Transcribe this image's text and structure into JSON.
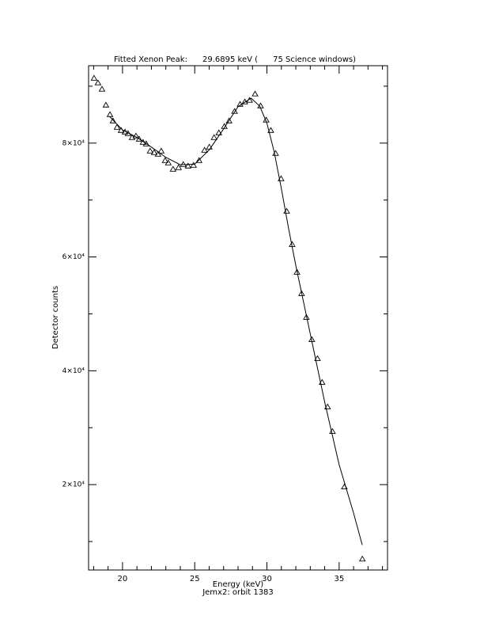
{
  "chart_data": {
    "type": "scatter",
    "title": "Fitted Xenon Peak:      29.6895 keV (      75 Science windows)",
    "x_label": "Energy (keV)",
    "subtitle": "Jemx2: orbit 1383",
    "y_label": "Detector counts",
    "xlim": [
      17.65,
      38.35
    ],
    "ylim": [
      5000,
      93600
    ],
    "xticks": [
      20,
      25,
      30,
      35
    ],
    "x_minor_ticks": [
      18,
      19,
      21,
      22,
      23,
      24,
      26,
      27,
      28,
      29,
      31,
      32,
      33,
      34,
      36,
      37,
      38
    ],
    "yticks": [
      {
        "value": 20000,
        "label": "2×10⁴"
      },
      {
        "value": 40000,
        "label": "4×10⁴"
      },
      {
        "value": 60000,
        "label": "6×10⁴"
      },
      {
        "value": 80000,
        "label": "8×10⁴"
      }
    ],
    "y_minor_ticks": [
      10000,
      30000,
      50000,
      70000,
      90000
    ],
    "color": "#000000",
    "points": {
      "x": [
        18.03,
        18.3,
        18.58,
        18.85,
        19.13,
        19.34,
        19.62,
        19.9,
        20.17,
        20.38,
        20.66,
        20.93,
        21.15,
        21.42,
        21.64,
        21.91,
        22.19,
        22.46,
        22.68,
        22.95,
        23.17,
        23.5,
        23.88,
        24.21,
        24.54,
        24.92,
        25.3,
        25.68,
        26.01,
        26.34,
        26.67,
        27.05,
        27.38,
        27.76,
        28.14,
        28.47,
        28.8,
        29.18,
        29.56,
        29.95,
        30.27,
        30.6,
        30.98,
        31.37,
        31.75,
        32.08,
        32.4,
        32.73,
        33.11,
        33.5,
        33.82,
        34.2,
        34.54,
        35.36,
        36.61
      ],
      "y": [
        91400,
        90580,
        89470,
        86680,
        85010,
        83900,
        82780,
        82230,
        81950,
        81670,
        80970,
        81250,
        80700,
        80140,
        79860,
        78610,
        78330,
        78050,
        78610,
        76940,
        76520,
        75410,
        75690,
        76240,
        75970,
        76100,
        76940,
        78750,
        79300,
        80970,
        81810,
        82920,
        83900,
        85570,
        86820,
        87240,
        87520,
        88630,
        86540,
        84040,
        82230,
        78190,
        73740,
        68030,
        62180,
        57310,
        53550,
        49380,
        45480,
        42140,
        37960,
        33650,
        29330,
        19590,
        6920
      ]
    },
    "fit": {
      "x": [
        19.1,
        20.0,
        21.0,
        22.0,
        23.0,
        24.0,
        25.0,
        26.0,
        27.0,
        28.0,
        28.9,
        29.5,
        30.0,
        30.5,
        31.0,
        31.5,
        32.0,
        33.0,
        34.0,
        35.0,
        36.0,
        36.6
      ],
      "y": [
        84700,
        82300,
        81000,
        79300,
        77500,
        76200,
        76300,
        78800,
        82500,
        86400,
        87900,
        86500,
        83500,
        78500,
        72000,
        65000,
        58500,
        46500,
        34500,
        23500,
        15000,
        9400
      ]
    }
  }
}
